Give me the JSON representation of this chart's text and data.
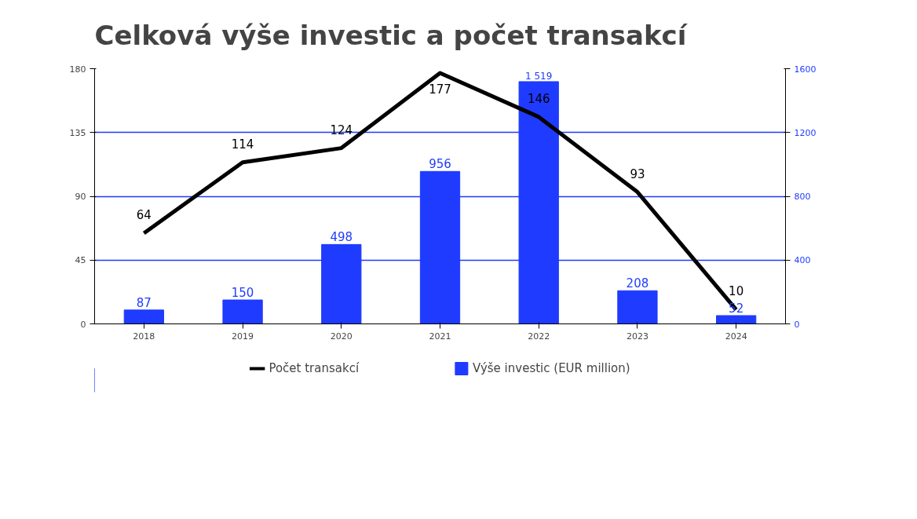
{
  "chart_data": {
    "type": "bar",
    "title": "Celková výše investic a počet transakcí",
    "categories": [
      "2018",
      "2019",
      "2020",
      "2021",
      "2022",
      "2023",
      "2024"
    ],
    "series": [
      {
        "name": "Počet transakcí",
        "type": "line",
        "color": "#000000",
        "values": [
          64,
          114,
          124,
          177,
          146,
          93,
          10
        ],
        "value_labels": [
          "64",
          "114",
          "124",
          "177",
          "146",
          "93",
          "10"
        ]
      },
      {
        "name": "Výše investic (EUR million)",
        "axis": "y2",
        "color": "#1f3bff",
        "values": [
          87,
          150,
          498,
          956,
          1519,
          208,
          52
        ],
        "value_labels": [
          "87",
          "150",
          "498",
          "956",
          "1 519",
          "208",
          "52"
        ]
      }
    ],
    "ylim": [
      0,
      180
    ],
    "yticks": [
      0,
      45,
      90,
      135,
      180
    ],
    "y2lim": [
      0,
      1600
    ],
    "y2ticks": [
      0,
      400,
      800,
      1200,
      1600
    ],
    "grid": "y",
    "legend": "bottom",
    "marker": "none",
    "line_style": "solid"
  }
}
